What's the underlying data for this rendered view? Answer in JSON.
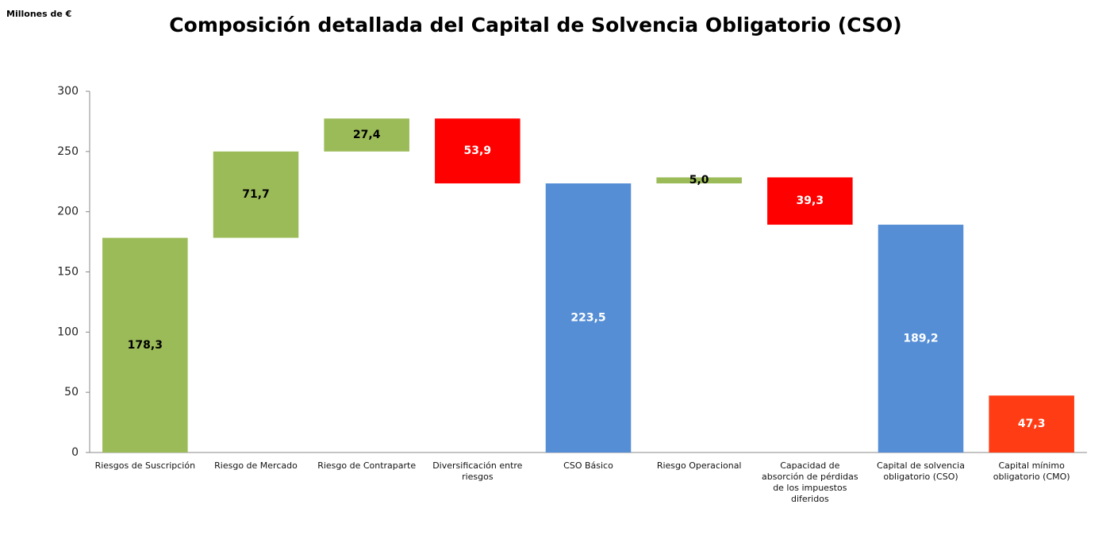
{
  "chart_data": {
    "type": "waterfall",
    "title": "Composición detallada del Capital de Solvencia Obligatorio (CSO)",
    "unit_label": "Millones de €",
    "categories": [
      "Riesgos de Suscripción",
      "Riesgo de Mercado",
      "Riesgo de Contraparte",
      "Diversificación entre riesgos",
      "CSO Básico",
      "Riesgo Operacional",
      "Capacidad de absorción de pérdidas de los impuestos diferidos",
      "Capital de solvencia obligatorio (CSO)",
      "Capital mínimo obligatorio (CMO)"
    ],
    "values": [
      178.3,
      71.7,
      27.4,
      53.9,
      223.5,
      5.0,
      39.3,
      189.2,
      47.3
    ],
    "value_labels": [
      "178,3",
      "71,7",
      "27,4",
      "53,9",
      "223,5",
      "5,0",
      "39,3",
      "189,2",
      "47,3"
    ],
    "measures": [
      "up",
      "up",
      "up",
      "down",
      "total",
      "up",
      "down",
      "total",
      "total"
    ],
    "colors": [
      "#9bbb59",
      "#9bbb59",
      "#9bbb59",
      "#ff0000",
      "#558ed5",
      "#9bbb59",
      "#ff0000",
      "#558ed5",
      "#ff3c14"
    ],
    "label_colors": [
      "#000000",
      "#000000",
      "#000000",
      "#ffffff",
      "#ffffff",
      "#000000",
      "#ffffff",
      "#ffffff",
      "#ffffff"
    ],
    "ylim": [
      0,
      300
    ],
    "yticks": [
      0,
      50,
      100,
      150,
      200,
      250,
      300
    ],
    "grid": false
  }
}
